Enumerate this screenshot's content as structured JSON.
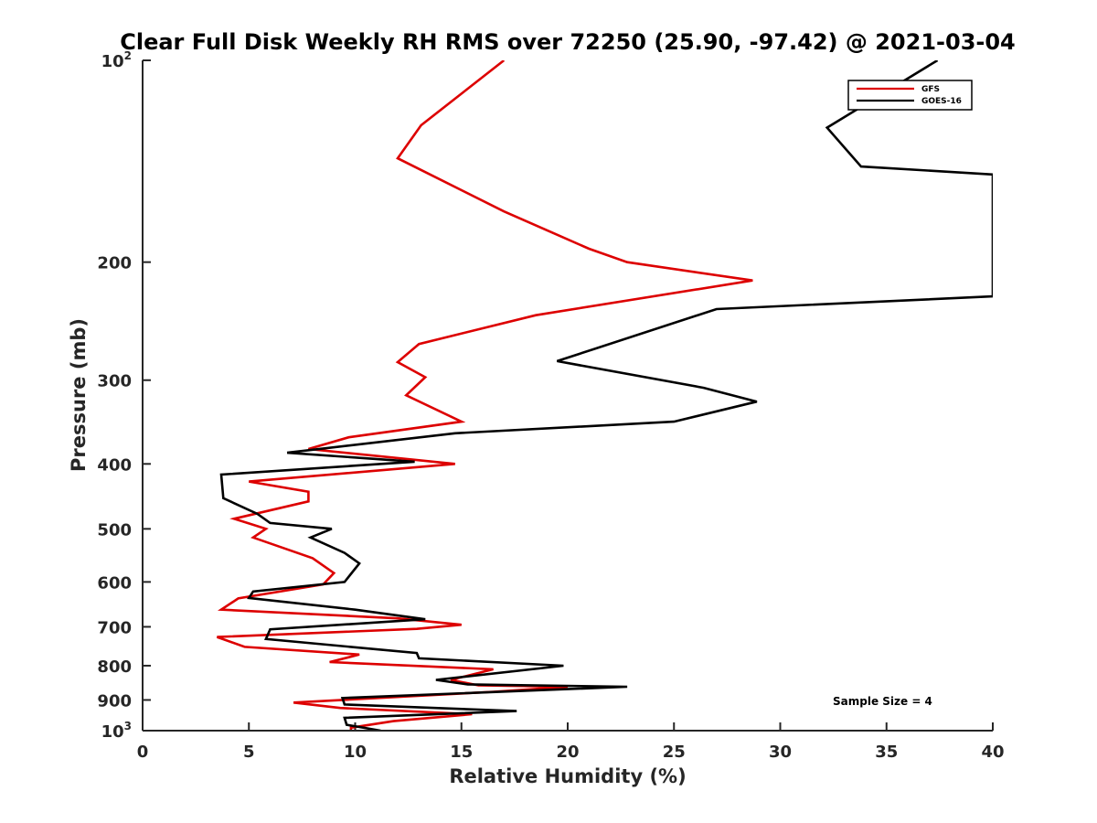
{
  "chart_data": {
    "type": "line",
    "title": "Clear Full Disk Weekly RH RMS over 72250 (25.90, -97.42) @ 2021-03-04",
    "xlabel": "Relative Humidity (%)",
    "ylabel": "Pressure (mb)",
    "xlim": [
      0,
      40
    ],
    "ylim": [
      100,
      1000
    ],
    "y_scale": "log",
    "y_reversed": true,
    "x_ticks": [
      0,
      5,
      10,
      15,
      20,
      25,
      30,
      35,
      40
    ],
    "y_ticks": [
      {
        "value": 100,
        "label": "10",
        "sup": "2"
      },
      {
        "value": 200,
        "label": "200",
        "sup": ""
      },
      {
        "value": 300,
        "label": "300",
        "sup": ""
      },
      {
        "value": 400,
        "label": "400",
        "sup": ""
      },
      {
        "value": 500,
        "label": "500",
        "sup": ""
      },
      {
        "value": 600,
        "label": "600",
        "sup": ""
      },
      {
        "value": 700,
        "label": "700",
        "sup": ""
      },
      {
        "value": 800,
        "label": "800",
        "sup": ""
      },
      {
        "value": 900,
        "label": "900",
        "sup": ""
      },
      {
        "value": 1000,
        "label": "10",
        "sup": "3"
      }
    ],
    "legend_position": "top-right",
    "annotation": "Sample Size = 4",
    "series": [
      {
        "name": "GFS",
        "color": "#dd0000",
        "points": [
          [
            17.0,
            100
          ],
          [
            13.1,
            125
          ],
          [
            12.0,
            140
          ],
          [
            17.0,
            168
          ],
          [
            21.0,
            191
          ],
          [
            22.8,
            200
          ],
          [
            28.7,
            213
          ],
          [
            18.5,
            240
          ],
          [
            13.0,
            265
          ],
          [
            12.0,
            282
          ],
          [
            13.3,
            297
          ],
          [
            12.4,
            316
          ],
          [
            15.0,
            346
          ],
          [
            9.7,
            365
          ],
          [
            7.8,
            380
          ],
          [
            14.7,
            400
          ],
          [
            5.0,
            425
          ],
          [
            7.8,
            440
          ],
          [
            7.8,
            455
          ],
          [
            4.3,
            483
          ],
          [
            5.8,
            500
          ],
          [
            5.2,
            515
          ],
          [
            8.0,
            553
          ],
          [
            9.0,
            582
          ],
          [
            8.5,
            605
          ],
          [
            4.5,
            635
          ],
          [
            3.7,
            660
          ],
          [
            12.0,
            680
          ],
          [
            15.0,
            695
          ],
          [
            12.9,
            705
          ],
          [
            3.5,
            725
          ],
          [
            4.8,
            750
          ],
          [
            10.2,
            770
          ],
          [
            8.8,
            790
          ],
          [
            16.5,
            810
          ],
          [
            14.5,
            840
          ],
          [
            15.8,
            856
          ],
          [
            20.0,
            860
          ],
          [
            16.5,
            875
          ],
          [
            7.1,
            908
          ],
          [
            9.3,
            925
          ],
          [
            15.5,
            945
          ],
          [
            11.8,
            968
          ],
          [
            9.8,
            990
          ],
          [
            9.8,
            1000
          ]
        ]
      },
      {
        "name": "GOES-16",
        "color": "#000000",
        "points": [
          [
            37.4,
            100
          ],
          [
            32.2,
            126
          ],
          [
            33.8,
            144
          ],
          [
            40.0,
            148
          ],
          [
            40.0,
            225
          ],
          [
            27.0,
            235
          ],
          [
            19.5,
            281
          ],
          [
            26.4,
            308
          ],
          [
            28.9,
            323
          ],
          [
            25.0,
            346
          ],
          [
            14.7,
            360
          ],
          [
            6.8,
            385
          ],
          [
            12.8,
            397
          ],
          [
            3.7,
            415
          ],
          [
            3.8,
            450
          ],
          [
            5.4,
            475
          ],
          [
            6.0,
            490
          ],
          [
            8.9,
            500
          ],
          [
            7.9,
            515
          ],
          [
            9.5,
            543
          ],
          [
            10.2,
            563
          ],
          [
            9.5,
            600
          ],
          [
            5.2,
            620
          ],
          [
            5.0,
            634
          ],
          [
            10.0,
            660
          ],
          [
            13.3,
            682
          ],
          [
            6.0,
            706
          ],
          [
            5.8,
            730
          ],
          [
            12.9,
            766
          ],
          [
            13.0,
            780
          ],
          [
            19.8,
            800
          ],
          [
            13.8,
            840
          ],
          [
            15.3,
            853
          ],
          [
            22.8,
            860
          ],
          [
            9.4,
            894
          ],
          [
            9.5,
            914
          ],
          [
            17.6,
            935
          ],
          [
            9.5,
            957
          ],
          [
            9.6,
            980
          ],
          [
            11.2,
            1000
          ]
        ]
      }
    ]
  }
}
